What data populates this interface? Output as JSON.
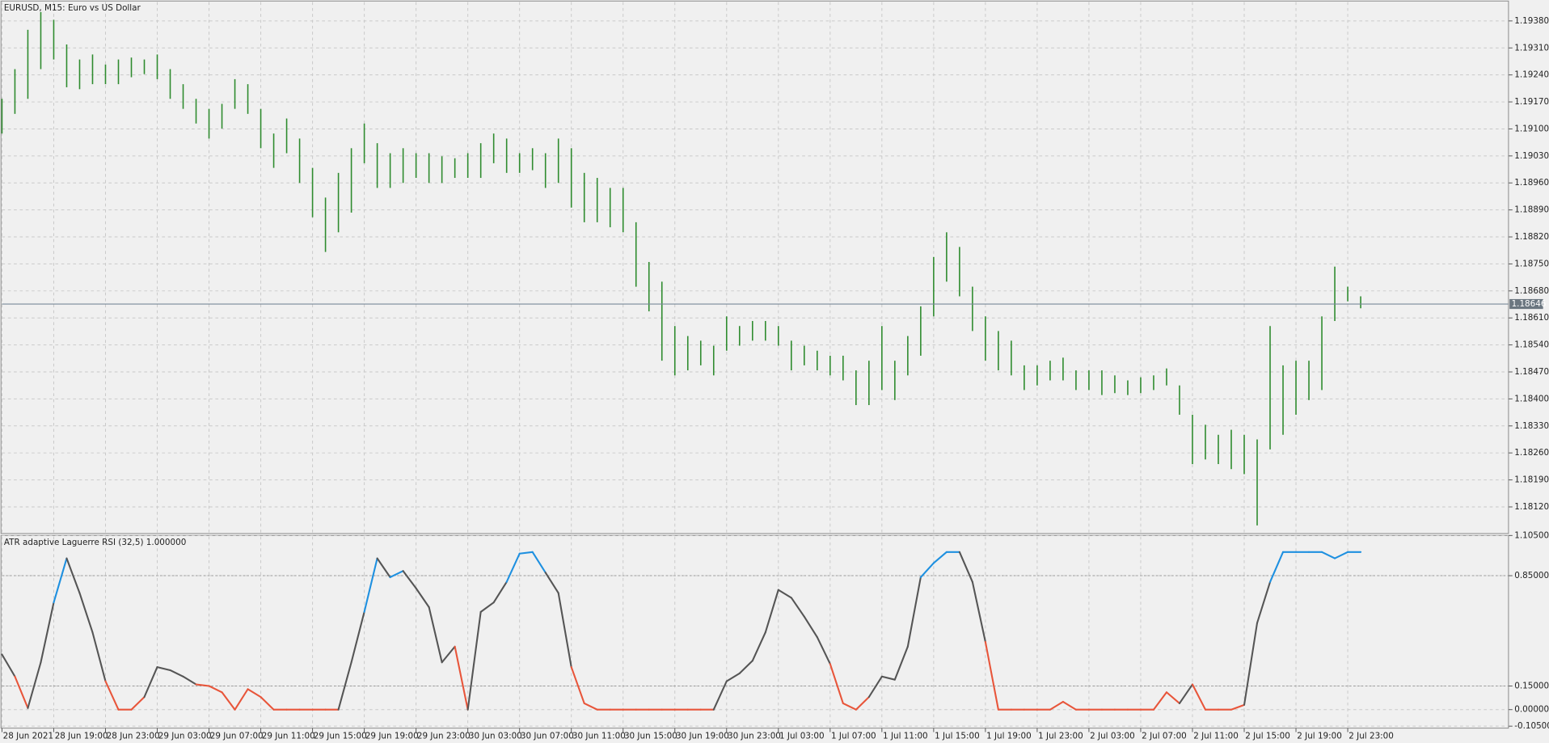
{
  "chart_data": [
    {
      "type": "ohlc",
      "title": "EURUSD, M15:  Euro vs US Dollar",
      "color": "#2e8b2e",
      "high": [
        1.19178,
        1.19255,
        1.19357,
        1.19403,
        1.19383,
        1.19319,
        1.1928,
        1.19293,
        1.19267,
        1.1928,
        1.19285,
        1.1928,
        1.19293,
        1.19255,
        1.19216,
        1.19178,
        1.19152,
        1.19165,
        1.19229,
        1.19216,
        1.19152,
        1.19088,
        1.19127,
        1.19075,
        1.18999,
        1.18922,
        1.18986,
        1.1905,
        1.19114,
        1.19063,
        1.19037,
        1.1905,
        1.19037,
        1.19037,
        1.19029,
        1.19024,
        1.19037,
        1.19063,
        1.19088,
        1.19075,
        1.19037,
        1.1905,
        1.19037,
        1.19075,
        1.1905,
        1.18986,
        1.18973,
        1.18947,
        1.18947,
        1.18858,
        1.18755,
        1.18704,
        1.18589,
        1.18563,
        1.18551,
        1.18538,
        1.18614,
        1.18589,
        1.18602,
        1.18602,
        1.18589,
        1.18551,
        1.18538,
        1.18525,
        1.18512,
        1.18512,
        1.18474,
        1.18499,
        1.18589,
        1.18499,
        1.18563,
        1.1864,
        1.18768,
        1.18832,
        1.18794,
        1.18691,
        1.18614,
        1.18576,
        1.18551,
        1.18487,
        1.18487,
        1.18499,
        1.18507,
        1.18474,
        1.18474,
        1.18474,
        1.18461,
        1.18448,
        1.18456,
        1.18461,
        1.18479,
        1.18435,
        1.18359,
        1.18333,
        1.18307,
        1.1832,
        1.18307,
        1.18295,
        1.18589,
        1.18487,
        1.18499,
        1.18499,
        1.18614,
        1.18743,
        1.18691,
        1.18666
      ],
      "low": [
        1.19088,
        1.19139,
        1.19178,
        1.19255,
        1.1928,
        1.19208,
        1.19203,
        1.19216,
        1.19216,
        1.19216,
        1.19234,
        1.19242,
        1.19229,
        1.19178,
        1.19152,
        1.19114,
        1.19075,
        1.19101,
        1.19152,
        1.19139,
        1.1905,
        1.18999,
        1.19037,
        1.1896,
        1.18871,
        1.18781,
        1.18832,
        1.18883,
        1.19011,
        1.18947,
        1.18947,
        1.1896,
        1.18973,
        1.1896,
        1.1896,
        1.18973,
        1.18973,
        1.18973,
        1.19011,
        1.18986,
        1.18986,
        1.18993,
        1.18947,
        1.1896,
        1.18896,
        1.18858,
        1.18858,
        1.18845,
        1.18832,
        1.18691,
        1.18627,
        1.18499,
        1.18461,
        1.18474,
        1.18487,
        1.18461,
        1.18525,
        1.18538,
        1.18551,
        1.18551,
        1.18538,
        1.18474,
        1.18487,
        1.18474,
        1.18461,
        1.18448,
        1.18384,
        1.18384,
        1.18423,
        1.18397,
        1.18461,
        1.18512,
        1.18614,
        1.18704,
        1.18666,
        1.18576,
        1.18499,
        1.18474,
        1.18461,
        1.18423,
        1.18435,
        1.18448,
        1.18448,
        1.18423,
        1.18423,
        1.1841,
        1.18415,
        1.1841,
        1.18415,
        1.18423,
        1.18435,
        1.18359,
        1.18231,
        1.18243,
        1.18231,
        1.18218,
        1.18205,
        1.18072,
        1.18269,
        1.18307,
        1.18359,
        1.18397,
        1.18423,
        1.18602,
        1.18653,
        1.18635
      ],
      "current_price": 1.18646,
      "ylim": [
        1.18051,
        1.19429
      ],
      "yticks": [
        {
          "value": 1.1938,
          "label": "1.19380"
        },
        {
          "value": 1.1931,
          "label": "1.19310"
        },
        {
          "value": 1.1924,
          "label": "1.19240"
        },
        {
          "value": 1.1917,
          "label": "1.19170"
        },
        {
          "value": 1.191,
          "label": "1.19100"
        },
        {
          "value": 1.1903,
          "label": "1.19030"
        },
        {
          "value": 1.1896,
          "label": "1.18960"
        },
        {
          "value": 1.1889,
          "label": "1.18890"
        },
        {
          "value": 1.1882,
          "label": "1.18820"
        },
        {
          "value": 1.1875,
          "label": "1.18750"
        },
        {
          "value": 1.1868,
          "label": "1.18680"
        },
        {
          "value": 1.1861,
          "label": "1.18610"
        },
        {
          "value": 1.1854,
          "label": "1.18540"
        },
        {
          "value": 1.1847,
          "label": "1.18470"
        },
        {
          "value": 1.184,
          "label": "1.18400"
        },
        {
          "value": 1.1833,
          "label": "1.18330"
        },
        {
          "value": 1.1826,
          "label": "1.18260"
        },
        {
          "value": 1.1819,
          "label": "1.18190"
        },
        {
          "value": 1.1812,
          "label": "1.18120"
        }
      ],
      "grid": true
    },
    {
      "type": "line",
      "title": "ATR adaptive Laguerre RSI (32,5) 1.000000",
      "color": "#555555",
      "up_color": "#1e90e0",
      "down_color": "#e8553a",
      "values": [
        0.35,
        0.21,
        0.01,
        0.3,
        0.68,
        0.96,
        0.74,
        0.49,
        0.18,
        0,
        0,
        0.08,
        0.27,
        0.25,
        0.21,
        0.16,
        0.15,
        0.11,
        0,
        0.13,
        0.08,
        0,
        0,
        0,
        0,
        0,
        0,
        0.3,
        0.62,
        0.96,
        0.84,
        0.88,
        0.77,
        0.65,
        0.3,
        0.4,
        0,
        0.62,
        0.68,
        0.81,
        0.99,
        1,
        0.87,
        0.74,
        0.27,
        0.04,
        0,
        0,
        0,
        0,
        0,
        0,
        0,
        0,
        0,
        0,
        0.18,
        0.23,
        0.31,
        0.49,
        0.76,
        0.71,
        0.59,
        0.46,
        0.29,
        0.04,
        0,
        0.08,
        0.21,
        0.19,
        0.4,
        0.84,
        0.93,
        1,
        1,
        0.81,
        0.43,
        0,
        0,
        0,
        0,
        0,
        0.05,
        0,
        0,
        0,
        0,
        0,
        0,
        0,
        0.11,
        0.04,
        0.16,
        0,
        0,
        0,
        0.03,
        0.55,
        0.81,
        1,
        1,
        1,
        1,
        0.96,
        1,
        1
      ],
      "levels": [
        0.15,
        0.85
      ],
      "ylim": [
        -0.105,
        1.105
      ],
      "yticks": [
        {
          "value": 1.105,
          "label": "1.105000"
        },
        {
          "value": 0.85,
          "label": "0.850000"
        },
        {
          "value": 0.15,
          "label": "0.150000"
        },
        {
          "value": 0,
          "label": "0.000000"
        },
        {
          "value": -0.105,
          "label": "-0.105000"
        }
      ],
      "xlim": [
        0,
        116.5
      ],
      "xticks": [
        {
          "value": 0,
          "label": "28 Jun 2021"
        },
        {
          "value": 4,
          "label": "28 Jun 19:00"
        },
        {
          "value": 8,
          "label": "28 Jun 23:00"
        },
        {
          "value": 12,
          "label": "29 Jun 03:00"
        },
        {
          "value": 16,
          "label": "29 Jun 07:00"
        },
        {
          "value": 20,
          "label": "29 Jun 11:00"
        },
        {
          "value": 24,
          "label": "29 Jun 15:00"
        },
        {
          "value": 28,
          "label": "29 Jun 19:00"
        },
        {
          "value": 32,
          "label": "29 Jun 23:00"
        },
        {
          "value": 36,
          "label": "30 Jun 03:00"
        },
        {
          "value": 40,
          "label": "30 Jun 07:00"
        },
        {
          "value": 44,
          "label": "30 Jun 11:00"
        },
        {
          "value": 48,
          "label": "30 Jun 15:00"
        },
        {
          "value": 52,
          "label": "30 Jun 19:00"
        },
        {
          "value": 56,
          "label": "30 Jun 23:00"
        },
        {
          "value": 60,
          "label": "1 Jul 03:00"
        },
        {
          "value": 64,
          "label": "1 Jul 07:00"
        },
        {
          "value": 68,
          "label": "1 Jul 11:00"
        },
        {
          "value": 72,
          "label": "1 Jul 15:00"
        },
        {
          "value": 76,
          "label": "1 Jul 19:00"
        },
        {
          "value": 80,
          "label": "1 Jul 23:00"
        },
        {
          "value": 84,
          "label": "2 Jul 03:00"
        },
        {
          "value": 88,
          "label": "2 Jul 07:00"
        },
        {
          "value": 92,
          "label": "2 Jul 11:00"
        },
        {
          "value": 96,
          "label": "2 Jul 15:00"
        },
        {
          "value": 100,
          "label": "2 Jul 19:00"
        },
        {
          "value": 104,
          "label": "2 Jul 23:00"
        }
      ],
      "grid": true
    }
  ]
}
